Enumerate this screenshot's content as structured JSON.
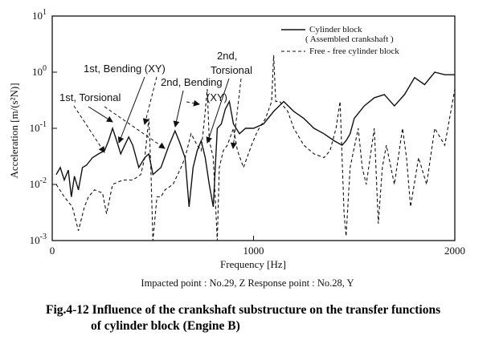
{
  "chart_data": {
    "type": "line",
    "xlabel": "Frequency [Hz]",
    "ylabel": "Acceleration [m/(s²N)]",
    "xlim": [
      0,
      2000
    ],
    "ylim_log10": [
      -3,
      1
    ],
    "y_scale": "log",
    "grid": false,
    "legend_position": "top-right",
    "x_ticks": [
      "0",
      "1000",
      "2000"
    ],
    "y_ticks": [
      {
        "base": "10",
        "exp": "1"
      },
      {
        "base": "10",
        "exp": "0"
      },
      {
        "base": "10",
        "exp": "-1"
      },
      {
        "base": "10",
        "exp": "-2"
      },
      {
        "base": "10",
        "exp": "-3"
      }
    ],
    "legend": {
      "solid_label": "Cylinder block",
      "solid_sublabel": "( Assembled crankshaft )",
      "dashed_label": "Free - free cylinder block"
    },
    "series": [
      {
        "name": "Cylinder block ( Assembled crankshaft )",
        "style": "solid",
        "x": [
          20,
          40,
          60,
          80,
          95,
          110,
          130,
          150,
          170,
          200,
          230,
          260,
          280,
          300,
          320,
          340,
          360,
          380,
          400,
          430,
          460,
          480,
          500,
          540,
          580,
          610,
          630,
          660,
          680,
          700,
          720,
          740,
          760,
          780,
          800,
          820,
          840,
          860,
          880,
          900,
          930,
          960,
          1000,
          1050,
          1100,
          1150,
          1200,
          1250,
          1300,
          1350,
          1400,
          1440,
          1460,
          1480,
          1500,
          1550,
          1600,
          1650,
          1700,
          1750,
          1800,
          1850,
          1900,
          1950,
          2000
        ],
        "y": [
          0.015,
          0.02,
          0.012,
          0.018,
          0.006,
          0.014,
          0.008,
          0.02,
          0.022,
          0.03,
          0.035,
          0.04,
          0.06,
          0.1,
          0.06,
          0.035,
          0.05,
          0.07,
          0.05,
          0.02,
          0.03,
          0.035,
          0.015,
          0.02,
          0.05,
          0.09,
          0.06,
          0.03,
          0.004,
          0.02,
          0.04,
          0.06,
          0.03,
          0.01,
          0.004,
          0.1,
          0.12,
          0.22,
          0.3,
          0.12,
          0.08,
          0.1,
          0.1,
          0.12,
          0.2,
          0.3,
          0.2,
          0.15,
          0.1,
          0.08,
          0.06,
          0.05,
          0.06,
          0.08,
          0.15,
          0.25,
          0.35,
          0.4,
          0.25,
          0.4,
          0.8,
          0.6,
          1.0,
          0.9,
          0.9
        ]
      },
      {
        "name": "Free - free cylinder block",
        "style": "dashed",
        "x": [
          20,
          60,
          100,
          130,
          160,
          180,
          210,
          250,
          270,
          300,
          350,
          400,
          440,
          460,
          480,
          490,
          500,
          520,
          540,
          560,
          600,
          640,
          660,
          690,
          720,
          740,
          760,
          770,
          780,
          800,
          820,
          830,
          850,
          870,
          900,
          920,
          950,
          990,
          1020,
          1060,
          1090,
          1100,
          1110,
          1130,
          1170,
          1200,
          1250,
          1300,
          1350,
          1380,
          1410,
          1430,
          1450,
          1460,
          1480,
          1520,
          1540,
          1560,
          1600,
          1620,
          1640,
          1660,
          1700,
          1740,
          1760,
          1780,
          1820,
          1860,
          1900,
          1950,
          2000
        ],
        "y": [
          0.01,
          0.006,
          0.004,
          0.0015,
          0.004,
          0.006,
          0.008,
          0.007,
          0.003,
          0.01,
          0.012,
          0.012,
          0.015,
          0.03,
          0.15,
          0.02,
          0.001,
          0.006,
          0.006,
          0.008,
          0.01,
          0.02,
          0.03,
          0.08,
          0.05,
          0.04,
          0.2,
          0.5,
          0.06,
          0.03,
          0.001,
          0.02,
          0.04,
          0.05,
          0.1,
          0.04,
          0.02,
          0.05,
          0.09,
          0.15,
          0.3,
          2.0,
          0.3,
          0.3,
          0.2,
          0.1,
          0.05,
          0.035,
          0.03,
          0.04,
          0.1,
          0.3,
          0.003,
          0.0012,
          0.02,
          0.1,
          0.02,
          0.01,
          0.1,
          0.002,
          0.02,
          0.05,
          0.01,
          0.1,
          0.03,
          0.004,
          0.03,
          0.01,
          0.1,
          0.05,
          0.5
        ]
      }
    ],
    "annotations": [
      {
        "label": "1st, Torsional"
      },
      {
        "label": "1st, Bending (XY)"
      },
      {
        "label_lines": [
          "2nd, Bending",
          "(XY)"
        ]
      },
      {
        "label_lines": [
          "2nd,",
          "Torsional"
        ]
      }
    ]
  },
  "figure": {
    "subcaption": "Impacted point : No.29, Z   Response point : No.28, Y",
    "caption_line1": "Fig.4-12 Influence of the crankshaft substructure on the transfer functions",
    "caption_line2": "of cylinder block (Engine B)"
  }
}
